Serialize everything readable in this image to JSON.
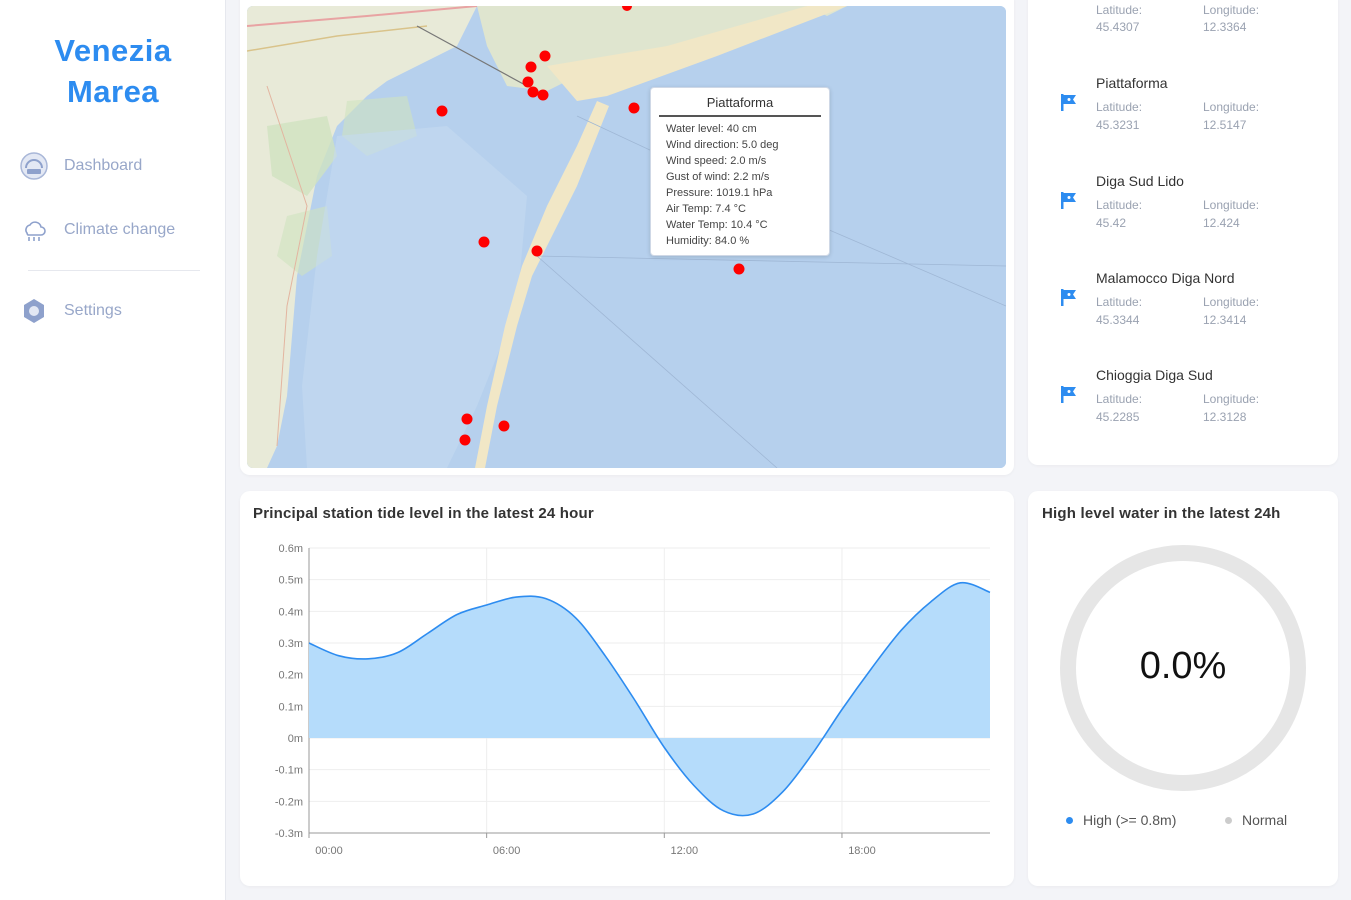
{
  "app": {
    "title_line1": "Venezia",
    "title_line2": "Marea"
  },
  "nav": {
    "items": [
      {
        "label": "Dashboard",
        "icon": "dashboard-icon"
      },
      {
        "label": "Climate change",
        "icon": "climate-icon"
      },
      {
        "label": "Settings",
        "icon": "gear-icon"
      }
    ]
  },
  "map": {
    "popup": {
      "title": "Piattaforma",
      "lines": [
        "Water level: 40 cm",
        "Wind direction: 5.0 deg",
        "Wind speed: 2.0 m/s",
        "Gust of wind: 2.2 m/s",
        "Pressure: 1019.1 hPa",
        "Air Temp: 7.4 °C",
        "Water Temp: 10.4 °C",
        "Humidity: 84.0 %"
      ]
    },
    "marker_color": "#ff0000"
  },
  "stations": {
    "latitude_label": "Latitude:",
    "longitude_label": "Longitude:",
    "items": [
      {
        "name": "",
        "latitude": "45.4307",
        "longitude": "12.3364"
      },
      {
        "name": "Piattaforma",
        "latitude": "45.3231",
        "longitude": "12.5147"
      },
      {
        "name": "Diga Sud Lido",
        "latitude": "45.42",
        "longitude": "12.424"
      },
      {
        "name": "Malamocco Diga Nord",
        "latitude": "45.3344",
        "longitude": "12.3414"
      },
      {
        "name": "Chioggia Diga Sud",
        "latitude": "45.2285",
        "longitude": "12.3128"
      }
    ]
  },
  "tide_chart": {
    "title": "Principal station tide level in the latest 24 hour"
  },
  "donut": {
    "title": "High level water in the latest 24h",
    "value": "0.0%",
    "legend_high": "High (>= 0.8m)",
    "legend_normal": "Normal",
    "high_fraction": 0.0,
    "color_high": "#2d8cf0",
    "color_normal": "#e6e6e6"
  },
  "chart_data": {
    "type": "area",
    "title": "Principal station tide level in the latest 24 hour",
    "xlabel": "",
    "ylabel": "",
    "x_ticks": [
      "00:00",
      "06:00",
      "12:00",
      "18:00"
    ],
    "y_ticks": [
      "0.6m",
      "0.5m",
      "0.4m",
      "0.3m",
      "0.2m",
      "0.1m",
      "0m",
      "-0.1m",
      "-0.2m",
      "-0.3m"
    ],
    "ylim": [
      -0.3,
      0.6
    ],
    "xlim": [
      0,
      23
    ],
    "x": [
      0,
      1,
      2,
      3,
      4,
      5,
      6,
      7,
      8,
      9,
      10,
      11,
      12,
      13,
      14,
      15,
      16,
      17,
      18,
      19,
      20,
      21,
      22,
      23
    ],
    "values": [
      0.3,
      0.26,
      0.25,
      0.27,
      0.33,
      0.39,
      0.42,
      0.445,
      0.44,
      0.38,
      0.26,
      0.12,
      -0.03,
      -0.15,
      -0.23,
      -0.24,
      -0.17,
      -0.05,
      0.09,
      0.22,
      0.34,
      0.43,
      0.49,
      0.46
    ],
    "line_color": "#2d8cf0",
    "fill_color": "#b5dcfb",
    "grid": true
  }
}
